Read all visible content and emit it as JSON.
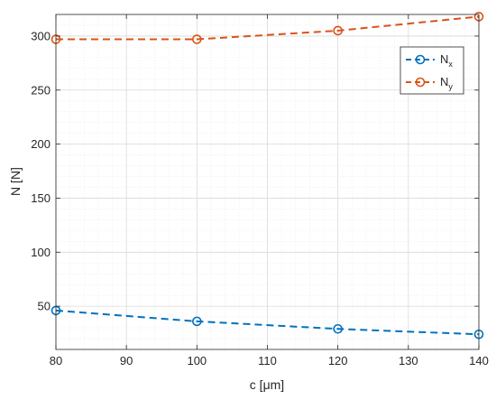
{
  "chart_data": {
    "type": "line",
    "xlabel": "c [μm]",
    "ylabel": "N [N]",
    "xlim": [
      80,
      140
    ],
    "ylim": [
      10,
      320
    ],
    "xticks": [
      80,
      90,
      100,
      110,
      120,
      130,
      140
    ],
    "yticks": [
      50,
      100,
      150,
      200,
      250,
      300
    ],
    "grid": true,
    "minor_grid": true,
    "legend_position": "top-right",
    "series": [
      {
        "name": "N",
        "name_subscript": "x",
        "color": "#0072BD",
        "line_style": "dashed",
        "marker": "circle",
        "x": [
          80,
          100,
          120,
          140
        ],
        "y": [
          46,
          36,
          29,
          24
        ]
      },
      {
        "name": "N",
        "name_subscript": "y",
        "color": "#D95319",
        "line_style": "dashed",
        "marker": "circle",
        "x": [
          80,
          100,
          120,
          140
        ],
        "y": [
          297,
          297,
          305,
          318
        ]
      }
    ]
  }
}
